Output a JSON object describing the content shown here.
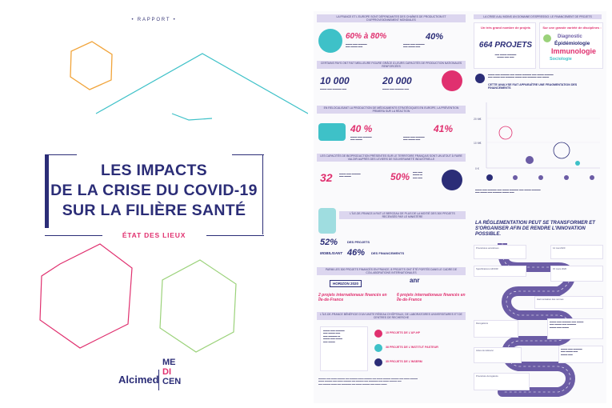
{
  "cover": {
    "label": "• RAPPORT •",
    "title_lines": [
      "LES IMPACTS",
      "DE LA CRISE DU COVID-19",
      "SUR LA FILIÈRE SANTÉ"
    ],
    "subtitle": "ÉTAT DES LIEUX",
    "logo_left": "Alcimed",
    "logo_right_top": "ME",
    "logo_right_mid": "DI",
    "logo_right_bottom": "CEN"
  },
  "poster_left": {
    "band1": "LA FRANCE ET L'EUROPE SONT DÉPENDANTES DES CHAÎNES DE PRODUCTION ET D'APPROVISIONNEMENT MONDIALES",
    "stat1": "60% à 80%",
    "stat2": "40%",
    "band2": "CERTAINS PAYS ONT FAIT MEILLEURE FIGURE GRÂCE À LEURS CAPACITÉS DE PRODUCTION NATIONALES RENFORCÉES",
    "stat3": "10 000",
    "stat4": "20 000",
    "band3": "EN RELOCALISANT LA PRODUCTION DE MÉDICAMENTS STRATÉGIQUES EN EUROPE, LA PRÉVENTION PRIMERA SUR LA RÉACTION",
    "stat5": "40 %",
    "stat6": "41%",
    "band4": "LES CAPACITÉS DE BIOPRODUCTION PRÉSENTES SUR LE TERRITOIRE FRANÇAIS SONT UN ATOUT À FAIRE VALOIR AUPRÈS DES LEVIERS DE SOUVERAINETÉ INDUSTRIELLE",
    "stat7": "32",
    "stat8": "50%",
    "band5": "L'ÎLE-DE-FRANCE A FAIT LE BERCEAU DE PLUS DE LA MOITIÉ DES 300 PROJETS RECENSÉS PAR LE MINISTÈRE",
    "stat9": "52%",
    "stat9_label": "DES PROJETS",
    "stat10": "46%",
    "stat10_prefix": "MOBILISANT",
    "stat10_label": "DES FINANCEMENTS",
    "band6": "PARMI LES 300 PROJETS FINANCÉS EN FRANCE, 8 PROJETS ONT ÉTÉ PORTÉS DANS LE CADRE DE COLLABORATIONS INTERNATIONALES",
    "horizon": "HORIZON 2020",
    "anr": "anr",
    "proj_a": "2 projets internationaux financés en Île-de-France",
    "proj_b": "6 projets internationaux financés en Île-de-France",
    "band7": "L'ÎLE-DE-FRANCE BÉNÉFICIE D'UN VASTE RÉSEAU D'HÔPITAUX, DE LABORATOIRES UNIVERSITAIRES ET DE CENTRES DE RECHERCHE",
    "hosp1": "15 PROJETS DE L'AP-HP",
    "hosp2": "38 PROJETS DE L'INSTITUT PASTEUR",
    "hosp3": "35 PROJETS DE L'INSERM"
  },
  "poster_right": {
    "band1": "LA CRISE A AU MOINS UN DOMAINE D'ESPRESSIO: LE FINANCEMENT DE PROJETS",
    "box_left_title": "Un très grand nombre de projets",
    "box_left_stat": "664 PROJETS",
    "box_right_title": "Sur une grande variété de disciplines :",
    "words": [
      "Diagnostic",
      "Épidémiologie",
      "Immunologie",
      "Sociologie"
    ],
    "chart_caption": "CETTE ANALYSE FAIT APPARAÎTRE UNE FRAGMENTATION DES FINANCEMENTS",
    "ticks": [
      "0 €",
      "10 M€",
      "20 M€"
    ],
    "headline": "LA RÉGLEMENTATION PEUT SE TRANSFORMER ET S'ORGANISER AFIN DE RENDRE L'INNOVATION POSSIBLE.",
    "step_titles": [
      "Procédures accélérées",
      "Spécifications AFNOR",
      "Harmonisation des normes",
      "Dérogations",
      "Actes de télésuivi",
      "Procédure dérogatoire"
    ],
    "date1": "14 mai 2020",
    "date2": "15 mars 2020"
  },
  "colors": {
    "navy": "#2b2d77",
    "pink": "#e0306f",
    "teal": "#3ec1c8",
    "lavender": "#dcd6ef",
    "orange": "#f1a43a",
    "green": "#9bd27a",
    "purple": "#6b5ca5"
  }
}
